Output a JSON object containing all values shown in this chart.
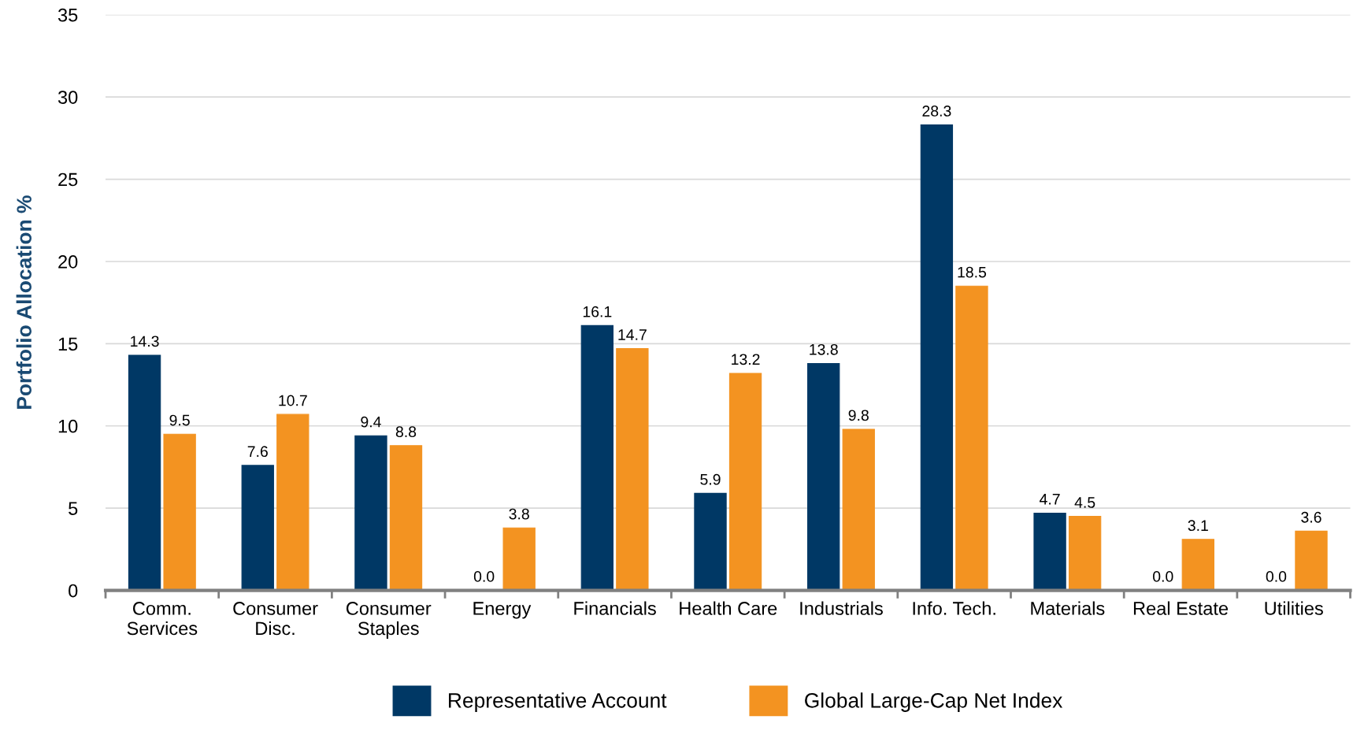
{
  "chart_data": {
    "type": "bar",
    "ylabel": "Portfolio Allocation %",
    "categories": [
      "Comm.\nServices",
      "Consumer\nDisc.",
      "Consumer\nStaples",
      "Energy",
      "Financials",
      "Health Care",
      "Industrials",
      "Info. Tech.",
      "Materials",
      "Real Estate",
      "Utilities"
    ],
    "series": [
      {
        "name": "Representative Account",
        "color": "#003865",
        "values": [
          14.3,
          7.6,
          9.4,
          0.0,
          16.1,
          5.9,
          13.8,
          28.3,
          4.7,
          0.0,
          0.0
        ],
        "value_labels": [
          "14.3",
          "7.6",
          "9.4",
          "0.0",
          "16.1",
          "5.9",
          "13.8",
          "28.3",
          "4.7",
          "0.0",
          "0.0"
        ]
      },
      {
        "name": "Global Large-Cap Net Index",
        "color": "#f39321",
        "values": [
          9.5,
          10.7,
          8.8,
          3.8,
          14.7,
          13.2,
          9.8,
          18.5,
          4.5,
          3.1,
          3.6
        ],
        "value_labels": [
          "9.5",
          "10.7",
          "8.8",
          "3.8",
          "14.7",
          "13.2",
          "9.8",
          "18.5",
          "4.5",
          "3.1",
          "3.6"
        ]
      }
    ],
    "ylim": [
      0,
      35
    ],
    "yticks": [
      0,
      5,
      10,
      15,
      20,
      25,
      30,
      35
    ],
    "grid": "y",
    "legend": "bottom"
  }
}
